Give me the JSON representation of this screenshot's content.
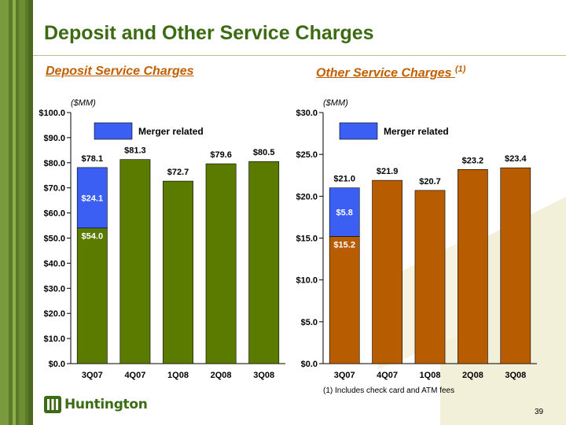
{
  "slide": {
    "title": "Deposit and Other Service Charges",
    "page_number": "39",
    "footnote": "(1) Includes check card and ATM fees",
    "logo_text": "Huntington"
  },
  "colors": {
    "accent_green": "#5b7a00",
    "accent_orange": "#b85c00",
    "merger_blue": "#3a5ff2",
    "title_green": "#3b6b12",
    "subtitle_orange": "#c25f00"
  },
  "chart_data": [
    {
      "type": "bar",
      "stacked": true,
      "title": "Deposit Service Charges",
      "unit_label": "($MM)",
      "categories": [
        "3Q07",
        "4Q07",
        "1Q08",
        "2Q08",
        "3Q08"
      ],
      "series": [
        {
          "values": [
            54.0,
            81.3,
            72.7,
            79.6,
            80.5
          ],
          "color": "#5b7a00"
        },
        {
          "name": "Merger related",
          "values": [
            24.1,
            0,
            0,
            0,
            0
          ],
          "color": "#3a5ff2"
        }
      ],
      "totals": [
        78.1,
        81.3,
        72.7,
        79.6,
        80.5
      ],
      "total_labels": [
        "$78.1",
        "$81.3",
        "$72.7",
        "$79.6",
        "$80.5"
      ],
      "segment_labels": [
        {
          "category": "3Q07",
          "series": 0,
          "text": "$54.0"
        },
        {
          "category": "3Q07",
          "series": 1,
          "text": "$24.1"
        }
      ],
      "y_ticks": [
        0,
        10,
        20,
        30,
        40,
        50,
        60,
        70,
        80,
        90,
        100
      ],
      "y_tick_labels": [
        "$0.0",
        "$10.0",
        "$20.0",
        "$30.0",
        "$40.0",
        "$50.0",
        "$60.0",
        "$70.0",
        "$80.0",
        "$90.0",
        "$100.0"
      ],
      "ylim": [
        0,
        100
      ],
      "legend": {
        "label": "Merger related",
        "placement": "top-left"
      },
      "grid": false
    },
    {
      "type": "bar",
      "stacked": true,
      "title": "Other Service Charges",
      "title_note": "(1)",
      "unit_label": "($MM)",
      "categories": [
        "3Q07",
        "4Q07",
        "1Q08",
        "2Q08",
        "3Q08"
      ],
      "series": [
        {
          "values": [
            15.2,
            21.9,
            20.7,
            23.2,
            23.4
          ],
          "color": "#b85c00"
        },
        {
          "name": "Merger related",
          "values": [
            5.8,
            0,
            0,
            0,
            0
          ],
          "color": "#3a5ff2"
        }
      ],
      "totals": [
        21.0,
        21.9,
        20.7,
        23.2,
        23.4
      ],
      "total_labels": [
        "$21.0",
        "$21.9",
        "$20.7",
        "$23.2",
        "$23.4"
      ],
      "segment_labels": [
        {
          "category": "3Q07",
          "series": 0,
          "text": "$15.2"
        },
        {
          "category": "3Q07",
          "series": 1,
          "text": "$5.8"
        }
      ],
      "y_ticks": [
        0,
        5,
        10,
        15,
        20,
        25,
        30
      ],
      "y_tick_labels": [
        "$0.0",
        "$5.0",
        "$10.0",
        "$15.0",
        "$20.0",
        "$25.0",
        "$30.0"
      ],
      "ylim": [
        0,
        30
      ],
      "legend": {
        "label": "Merger related",
        "placement": "top-left"
      },
      "grid": false
    }
  ]
}
